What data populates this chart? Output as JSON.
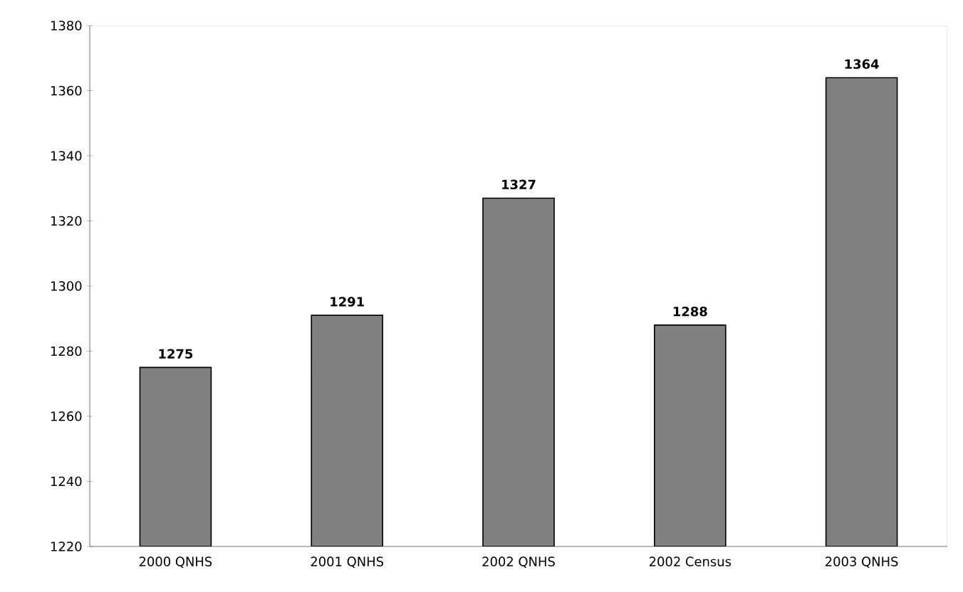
{
  "chart_data": {
    "type": "bar",
    "categories": [
      "2000 QNHS",
      "2001 QNHS",
      "2002 QNHS",
      "2002 Census",
      "2003 QNHS"
    ],
    "values": [
      1275,
      1291,
      1327,
      1288,
      1364
    ],
    "color": "#808080",
    "ylim": [
      1220,
      1380
    ],
    "yticks": [
      1220,
      1240,
      1260,
      1280,
      1300,
      1320,
      1340,
      1360,
      1380
    ],
    "data_labels": true,
    "grid": false
  }
}
